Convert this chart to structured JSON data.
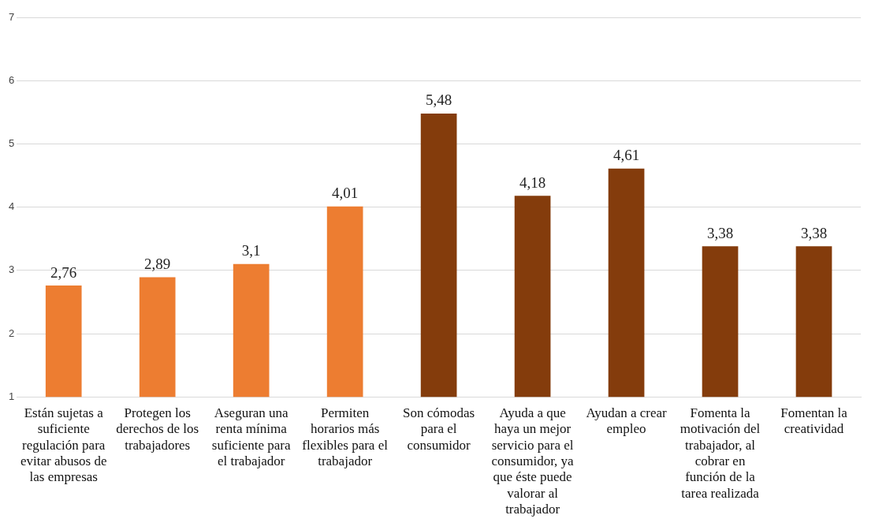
{
  "chart_data": {
    "type": "bar",
    "categories": [
      "Están sujetas a suficiente regulación para evitar abusos de las empresas",
      "Protegen los derechos de los trabajadores",
      "Aseguran una renta mínima suficiente para el trabajador",
      "Permiten horarios más flexibles para el trabajador",
      "Son cómodas para el consumidor",
      "Ayuda a que haya un mejor servicio para el consumidor, ya que éste puede valorar al trabajador",
      "Ayudan a crear empleo",
      "Fomenta la motivación del trabajador, al cobrar en función de la tarea realizada",
      "Fomentan la creatividad"
    ],
    "values": [
      2.76,
      2.89,
      3.1,
      4.01,
      5.48,
      4.18,
      4.61,
      3.38,
      3.38
    ],
    "colors": [
      "#ed7d31",
      "#ed7d31",
      "#ed7d31",
      "#ed7d31",
      "#843c0c",
      "#843c0c",
      "#843c0c",
      "#843c0c",
      "#843c0c"
    ],
    "value_labels": [
      "2,76",
      "2,89",
      "3,1",
      "4,01",
      "5,48",
      "4,18",
      "4,61",
      "3,38",
      "3,38"
    ],
    "ylim": [
      1,
      7
    ],
    "yticks": [
      1,
      2,
      3,
      4,
      5,
      6,
      7
    ],
    "grid": "y",
    "legend": false
  }
}
